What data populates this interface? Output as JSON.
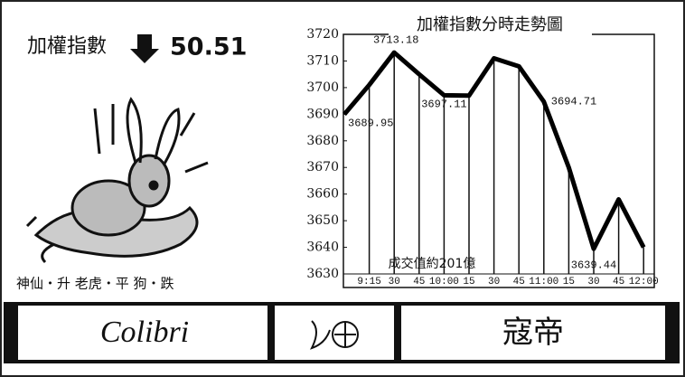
{
  "header": {
    "label": "加權指數",
    "change": "50.51"
  },
  "caption": "神仙・升 老虎・平 狗・跌",
  "ads": {
    "brand": "Colibri",
    "name": "寇帝"
  },
  "chart_data": {
    "type": "line",
    "title": "加權指數分時走勢圖",
    "annotation": "成交值約201億",
    "categories": [
      null,
      "9:15",
      "30",
      "45",
      "10:00",
      "15",
      "30",
      "45",
      "11:00",
      "15",
      "30",
      "45",
      "12:00"
    ],
    "series": [
      {
        "name": "加權指數",
        "color": "#000000",
        "values": [
          3689.95,
          3701,
          3713.18,
          3705,
          3697.11,
          3697,
          3711,
          3708,
          3694.71,
          3670,
          3639.44,
          3658,
          3640
        ]
      }
    ],
    "ylim": [
      3630,
      3720
    ],
    "yticks": [
      3630,
      3640,
      3650,
      3660,
      3670,
      3680,
      3690,
      3700,
      3710,
      3720
    ]
  }
}
